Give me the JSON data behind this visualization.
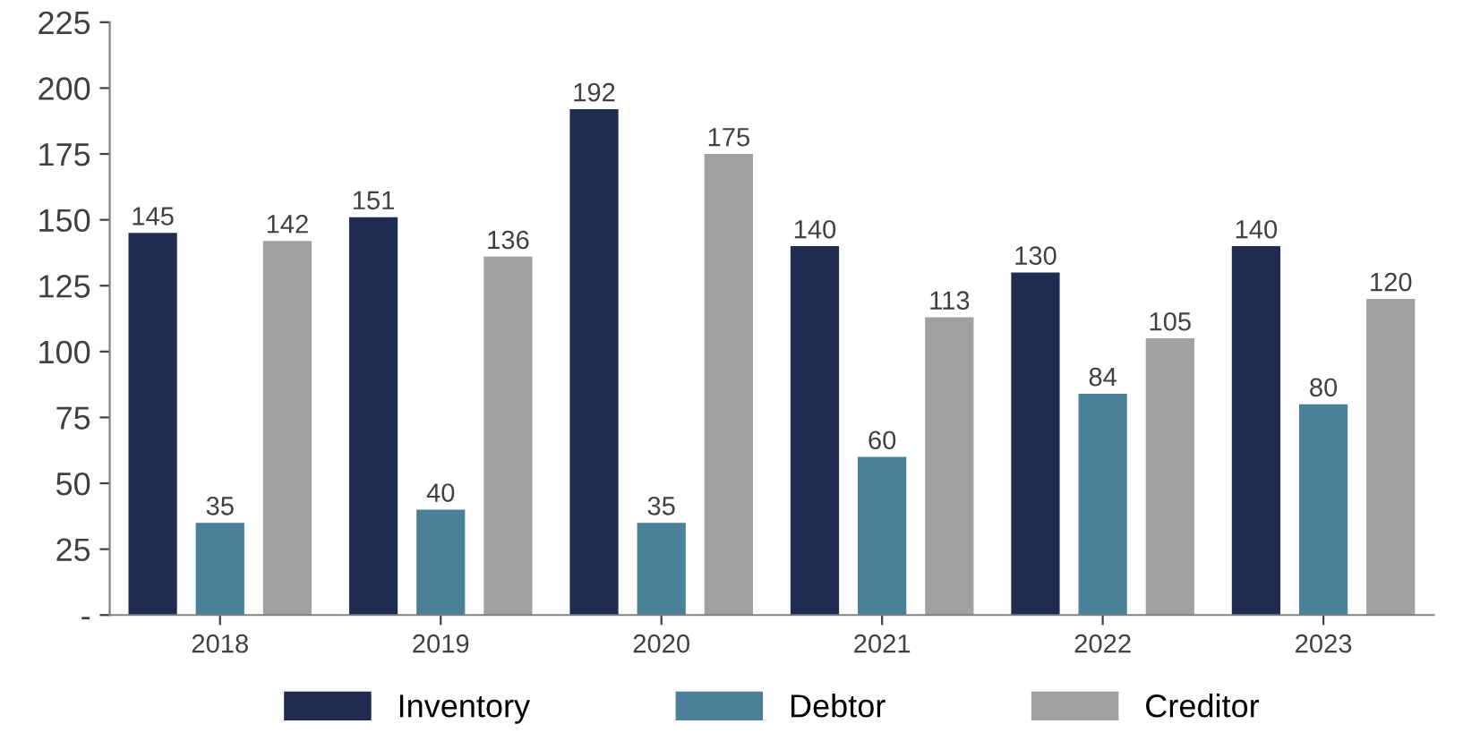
{
  "chart_data": {
    "type": "bar",
    "categories": [
      "2018",
      "2019",
      "2020",
      "2021",
      "2022",
      "2023"
    ],
    "series": [
      {
        "name": "Inventory",
        "color": "#1f2b50",
        "values": [
          145,
          151,
          192,
          140,
          130,
          140
        ]
      },
      {
        "name": "Debtor",
        "color": "#4a8199",
        "values": [
          35,
          40,
          35,
          60,
          84,
          80
        ]
      },
      {
        "name": "Creditor",
        "color": "#a0a0a0",
        "values": [
          142,
          136,
          175,
          113,
          105,
          120
        ]
      }
    ],
    "ylim": [
      0,
      225
    ],
    "yticks": [
      {
        "value": 0,
        "label": "-"
      },
      25,
      50,
      75,
      100,
      125,
      150,
      175,
      200,
      225
    ],
    "data_labels": true,
    "grid": false,
    "legend": "bottom"
  }
}
